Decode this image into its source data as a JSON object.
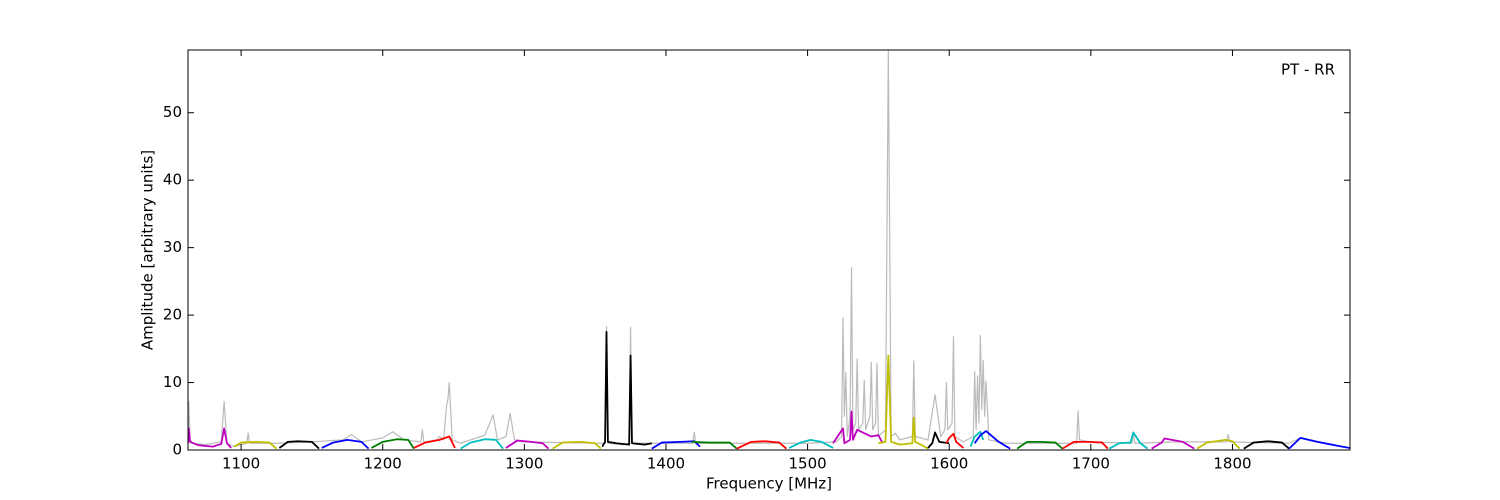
{
  "chart_data": {
    "type": "line",
    "annotation": "PT - RR",
    "x_label": "Frequency [MHz]",
    "y_label": "Amplitude [arbitrary units]",
    "xlim": [
      1062.5,
      1883
    ],
    "ylim": [
      0,
      59.3
    ],
    "xticks": [
      1100,
      1200,
      1300,
      1400,
      1500,
      1600,
      1700,
      1800
    ],
    "yticks": [
      0,
      10,
      20,
      30,
      40,
      50
    ],
    "series": [
      {
        "color": "#bbbbbb",
        "x": [
          1062.5,
          1063,
          1064,
          1066,
          1075,
          1086,
          1088,
          1090,
          1095,
          1104,
          1105,
          1106,
          1125,
          1150,
          1172,
          1178,
          1185,
          1200,
          1207,
          1215,
          1227,
          1228,
          1229,
          1238,
          1240,
          1243,
          1245,
          1246,
          1247,
          1249,
          1255,
          1272,
          1278,
          1281,
          1287,
          1290,
          1293,
          1300,
          1350,
          1357,
          1358,
          1359,
          1370,
          1374,
          1375,
          1376,
          1400,
          1419,
          1420,
          1421,
          1500,
          1520,
          1524,
          1525,
          1526,
          1527,
          1528,
          1530,
          1531,
          1532,
          1534,
          1535,
          1536,
          1539,
          1540,
          1541,
          1544,
          1545,
          1546,
          1548,
          1549,
          1550,
          1555,
          1557,
          1559,
          1562,
          1565,
          1574,
          1575,
          1576,
          1585,
          1590,
          1594,
          1597,
          1598,
          1599,
          1602,
          1603,
          1604,
          1610,
          1617,
          1618,
          1619,
          1620,
          1621,
          1622,
          1623,
          1624,
          1625,
          1626,
          1628,
          1640,
          1690,
          1691,
          1692,
          1700,
          1729,
          1730,
          1731,
          1760,
          1796,
          1797,
          1798,
          1840,
          1848,
          1883
        ],
        "values": [
          1,
          7.2,
          1.5,
          1,
          0.8,
          1.2,
          7.2,
          1,
          0.5,
          1,
          2.5,
          1,
          1,
          1.2,
          1.5,
          2.3,
          1.2,
          1.8,
          2.7,
          1.5,
          1.2,
          3,
          1.2,
          1.5,
          2,
          1.5,
          6.5,
          7.5,
          10,
          1.5,
          1,
          2.2,
          5.2,
          1.5,
          2,
          5.4,
          1.5,
          1.2,
          1,
          1,
          18.3,
          1,
          0.8,
          1,
          18.2,
          1,
          1,
          1,
          2.6,
          1,
          1,
          1.2,
          2,
          19.6,
          5,
          11.5,
          2,
          5,
          27,
          3,
          4,
          13.5,
          3,
          4,
          10.3,
          3,
          5,
          13,
          3,
          4,
          12.8,
          2,
          3,
          59.3,
          2,
          2.5,
          1.5,
          2,
          13.2,
          2,
          1.5,
          8.2,
          2,
          3,
          10,
          3,
          4,
          16.8,
          2,
          1.2,
          2,
          11.6,
          3,
          11,
          4,
          17,
          6,
          13.3,
          5,
          10.2,
          1.5,
          1,
          1,
          5.8,
          1.5,
          1.2,
          1,
          2.5,
          1,
          1.2,
          1.2,
          2.3,
          1.2,
          1,
          1.8,
          0.3
        ]
      },
      {
        "color": "#bf00bf",
        "x": [
          1062.5,
          1063,
          1064,
          1070,
          1080,
          1086,
          1088,
          1090,
          1093
        ],
        "values": [
          1,
          3.2,
          1.2,
          0.7,
          0.5,
          0.9,
          3.2,
          1,
          0.3
        ]
      },
      {
        "color": "#bfbf00",
        "x": [
          1095,
          1100,
          1110,
          1120,
          1125
        ],
        "values": [
          0.5,
          1.1,
          1.2,
          1.1,
          0.2
        ]
      },
      {
        "color": "#000000",
        "x": [
          1127,
          1133,
          1140,
          1150,
          1155
        ],
        "values": [
          0.3,
          1.2,
          1.3,
          1.2,
          0.2
        ]
      },
      {
        "color": "#0000ff",
        "x": [
          1157,
          1165,
          1175,
          1185,
          1190
        ],
        "values": [
          0.3,
          1.1,
          1.5,
          1.2,
          0.2
        ]
      },
      {
        "color": "#008000",
        "x": [
          1192,
          1200,
          1210,
          1218,
          1222
        ],
        "values": [
          0.3,
          1.2,
          1.6,
          1.5,
          0.2
        ]
      },
      {
        "color": "#ff0000",
        "x": [
          1222,
          1230,
          1240,
          1247,
          1251
        ],
        "values": [
          0.3,
          1.1,
          1.5,
          2,
          0.3
        ]
      },
      {
        "color": "#00bfbf",
        "x": [
          1255,
          1262,
          1272,
          1280,
          1285
        ],
        "values": [
          0.2,
          1.1,
          1.6,
          1.5,
          0.2
        ]
      },
      {
        "color": "#bf00bf",
        "x": [
          1287,
          1295,
          1305,
          1313,
          1317
        ],
        "values": [
          0.3,
          1.4,
          1.2,
          1,
          0.2
        ]
      },
      {
        "color": "#bfbf00",
        "x": [
          1320,
          1327,
          1340,
          1350,
          1354
        ],
        "values": [
          0.2,
          1.1,
          1.2,
          1,
          0.2
        ]
      },
      {
        "color": "#000000",
        "x": [
          1355,
          1357,
          1358,
          1359,
          1365,
          1374,
          1375,
          1376,
          1385,
          1390
        ],
        "values": [
          0.5,
          1.2,
          17.5,
          1.2,
          1,
          0.8,
          14,
          1,
          0.8,
          1
        ]
      },
      {
        "color": "#0000ff",
        "x": [
          1390,
          1397,
          1410,
          1420,
          1424
        ],
        "values": [
          0.2,
          1.1,
          1.2,
          1.3,
          0.5
        ]
      },
      {
        "color": "#008000",
        "x": [
          1418,
          1430,
          1445,
          1450
        ],
        "values": [
          1.2,
          1.1,
          1.1,
          0.2
        ]
      },
      {
        "color": "#ff0000",
        "x": [
          1450,
          1460,
          1470,
          1480,
          1485
        ],
        "values": [
          0.2,
          1.2,
          1.3,
          1.1,
          0.2
        ]
      },
      {
        "color": "#00bfbf",
        "x": [
          1487,
          1495,
          1502,
          1510,
          1518
        ],
        "values": [
          0.3,
          1.1,
          1.5,
          1.2,
          0.3
        ]
      },
      {
        "color": "#bf00bf",
        "x": [
          1518,
          1525,
          1526,
          1530,
          1531,
          1532,
          1535,
          1540,
          1545,
          1550,
          1553
        ],
        "values": [
          1,
          3.2,
          1,
          1.5,
          5.7,
          1.5,
          3,
          2.5,
          2,
          2.2,
          1
        ]
      },
      {
        "color": "#bfbf00",
        "x": [
          1550,
          1555,
          1557,
          1559,
          1565,
          1574,
          1575,
          1576,
          1580,
          1585
        ],
        "values": [
          1,
          1.2,
          14,
          1.2,
          0.8,
          1,
          4.8,
          1.2,
          0.8,
          0.2
        ]
      },
      {
        "color": "#000000",
        "x": [
          1585,
          1588,
          1590,
          1593,
          1600
        ],
        "values": [
          0.3,
          1,
          2.6,
          1.2,
          1
        ]
      },
      {
        "color": "#ff0000",
        "x": [
          1598,
          1600,
          1603,
          1605,
          1610
        ],
        "values": [
          1,
          1.8,
          2.4,
          1.2,
          0.3
        ]
      },
      {
        "color": "#00bfbf",
        "x": [
          1615,
          1618,
          1622,
          1624
        ],
        "values": [
          0.5,
          2,
          2.7,
          1.5
        ]
      },
      {
        "color": "#0000ff",
        "x": [
          1618,
          1622,
          1626,
          1635,
          1643
        ],
        "values": [
          1,
          2.2,
          2.8,
          1.2,
          0.2
        ]
      },
      {
        "color": "#008000",
        "x": [
          1648,
          1655,
          1665,
          1675,
          1680
        ],
        "values": [
          0.2,
          1.2,
          1.2,
          1.1,
          0.2
        ]
      },
      {
        "color": "#ff0000",
        "x": [
          1680,
          1688,
          1698,
          1708,
          1712
        ],
        "values": [
          0.2,
          1.2,
          1.2,
          1.1,
          0.2
        ]
      },
      {
        "color": "#00bfbf",
        "x": [
          1713,
          1720,
          1728,
          1730,
          1735,
          1740
        ],
        "values": [
          0.2,
          1,
          1.1,
          2.6,
          1,
          0.2
        ]
      },
      {
        "color": "#bf00bf",
        "x": [
          1743,
          1750,
          1752,
          1765,
          1773
        ],
        "values": [
          0.2,
          1.1,
          1.7,
          1.2,
          0.2
        ]
      },
      {
        "color": "#bfbf00",
        "x": [
          1775,
          1782,
          1795,
          1800,
          1805
        ],
        "values": [
          0.2,
          1.1,
          1.5,
          1.3,
          0.2
        ]
      },
      {
        "color": "#000000",
        "x": [
          1808,
          1815,
          1825,
          1835,
          1840
        ],
        "values": [
          0.2,
          1.1,
          1.3,
          1.1,
          0.2
        ]
      },
      {
        "color": "#0000ff",
        "x": [
          1840,
          1848,
          1860,
          1875,
          1883
        ],
        "values": [
          0.2,
          1.8,
          1.2,
          0.6,
          0.3
        ]
      }
    ]
  }
}
